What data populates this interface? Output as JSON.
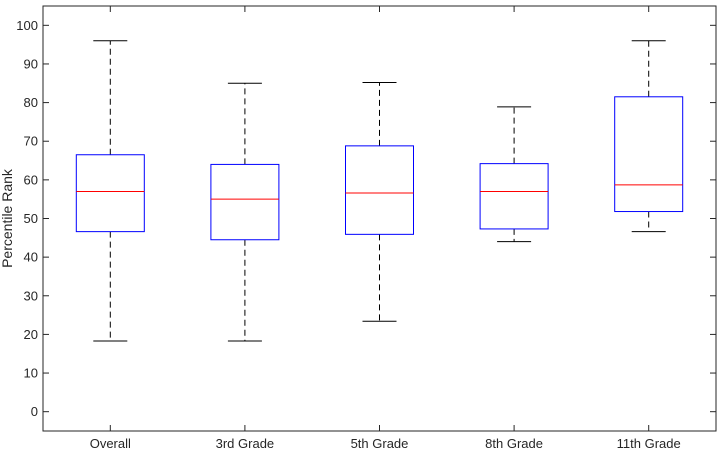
{
  "chart_data": {
    "type": "box",
    "title": "",
    "xlabel": "",
    "ylabel": "Percentile Rank",
    "ylim": [
      -5,
      105
    ],
    "yticks": [
      0,
      10,
      20,
      30,
      40,
      50,
      60,
      70,
      80,
      90,
      100
    ],
    "grid": false,
    "categories": [
      "Overall",
      "3rd Grade",
      "5th Grade",
      "8th Grade",
      "11th Grade"
    ],
    "boxes": [
      {
        "whisker_low": 18.3,
        "q1": 46.6,
        "median": 57.0,
        "q3": 66.5,
        "whisker_high": 96.0
      },
      {
        "whisker_low": 18.3,
        "q1": 44.5,
        "median": 55.0,
        "q3": 64.0,
        "whisker_high": 85.0
      },
      {
        "whisker_low": 23.4,
        "q1": 45.9,
        "median": 56.6,
        "q3": 68.8,
        "whisker_high": 85.2
      },
      {
        "whisker_low": 44.0,
        "q1": 47.3,
        "median": 57.0,
        "q3": 64.2,
        "whisker_high": 78.9
      },
      {
        "whisker_low": 46.6,
        "q1": 51.8,
        "median": 58.7,
        "q3": 81.5,
        "whisker_high": 96.0
      }
    ],
    "colors": {
      "box": "#0000ff",
      "median": "#ff0000",
      "whisker": "#000000",
      "axis": "#262626"
    }
  }
}
